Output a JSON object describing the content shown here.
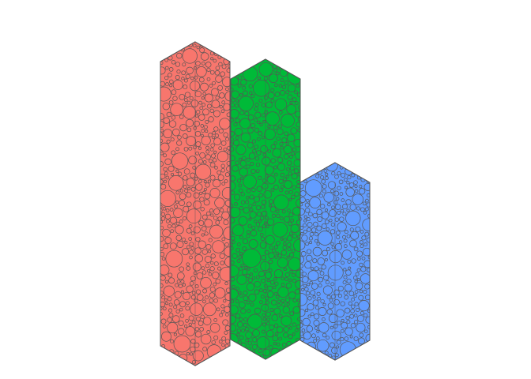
{
  "chart_data": {
    "type": "bar",
    "style": "isometric hexagonal prisms filled with packed circles",
    "grid": false,
    "legend": "none",
    "series": [
      {
        "values": [
          410
        ],
        "color": "#F8766D"
      },
      {
        "values": [
          380
        ],
        "color": "#00BA38"
      },
      {
        "values": [
          250
        ],
        "color": "#619CFF"
      }
    ],
    "outline_color": "#555555"
  }
}
